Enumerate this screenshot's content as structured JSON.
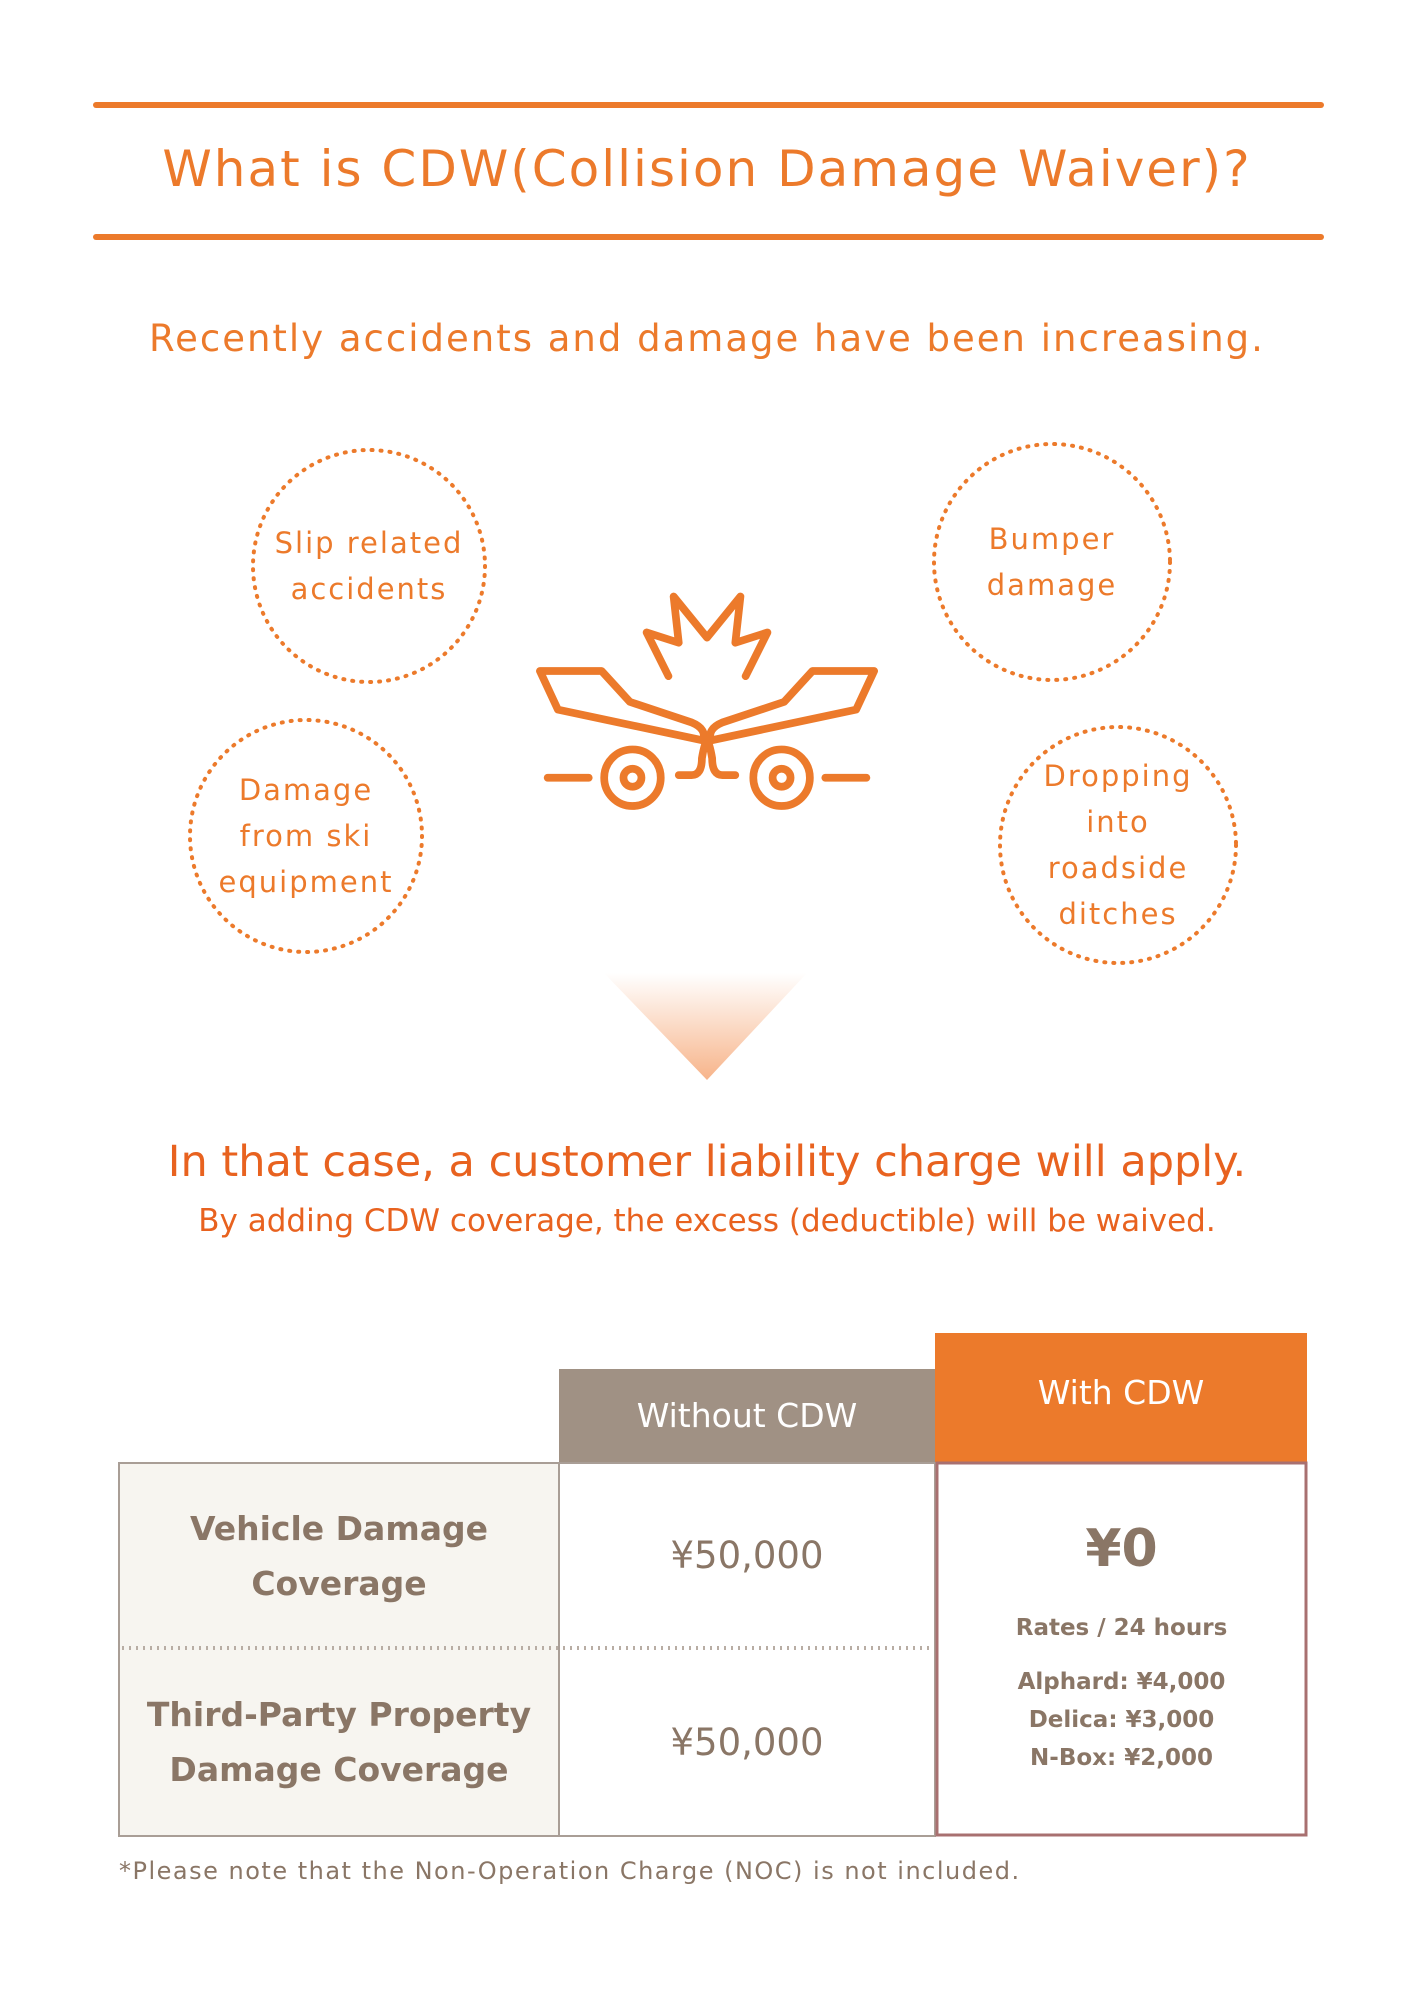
{
  "header": {
    "title": "What is CDW(Collision Damage Waiver)?"
  },
  "intro": "Recently accidents and damage have been increasing.",
  "bubbles": [
    [
      "Slip related",
      "accidents"
    ],
    [
      "Bumper",
      "damage"
    ],
    [
      "Damage",
      "from ski",
      "equipment"
    ],
    [
      "Dropping",
      "into",
      "roadside",
      "ditches"
    ]
  ],
  "headline": "In that case, a customer liability charge will apply.",
  "subline": "By adding CDW coverage, the excess (deductible) will be waived.",
  "table": {
    "columns": [
      "Without CDW",
      "With CDW"
    ],
    "rows": [
      {
        "label": [
          "Vehicle Damage",
          "Coverage"
        ],
        "without": "¥50,000"
      },
      {
        "label": [
          "Third-Party Property",
          "Damage Coverage"
        ],
        "without": "¥50,000"
      }
    ],
    "with_cdw": {
      "value": "¥0",
      "rates_label": "Rates / 24 hours",
      "rates": [
        "Alphard: ¥4,000",
        "Delica: ¥3,000",
        "N-Box: ¥2,000"
      ]
    }
  },
  "footnote": "*Please note that the Non-Operation Charge (NOC) is not included."
}
